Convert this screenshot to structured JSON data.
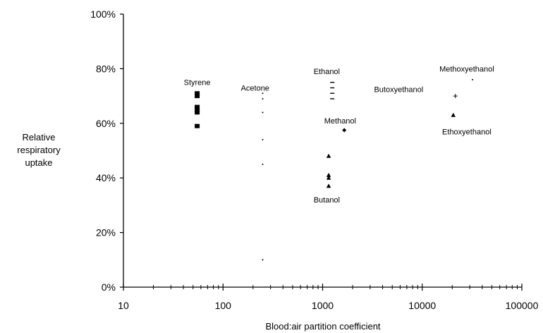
{
  "chart_data": {
    "type": "scatter",
    "title": "",
    "xlabel": "Blood:air partition coefficient",
    "ylabel": [
      "Relative",
      "respiratory",
      "uptake"
    ],
    "xscale": "log",
    "xlim": [
      10,
      100000
    ],
    "ylim": [
      0,
      100
    ],
    "x_tick_labels": [
      "10",
      "100",
      "1000",
      "10000",
      "100000"
    ],
    "x_ticks": [
      10,
      100,
      1000,
      10000,
      100000
    ],
    "y_tick_labels": [
      "0%",
      "20%",
      "40%",
      "60%",
      "80%",
      "100%"
    ],
    "y_ticks": [
      0,
      20,
      40,
      60,
      80,
      100
    ],
    "grid": false,
    "series": [
      {
        "name": "Styrene",
        "marker": "square",
        "points": [
          [
            55,
            71
          ],
          [
            55,
            70
          ],
          [
            55,
            66
          ],
          [
            55,
            65
          ],
          [
            55,
            64
          ],
          [
            55,
            59
          ]
        ]
      },
      {
        "name": "Acetone",
        "marker": "dot",
        "points": [
          [
            250,
            71
          ],
          [
            250,
            69
          ],
          [
            250,
            64
          ],
          [
            250,
            54
          ],
          [
            250,
            45
          ],
          [
            250,
            10
          ]
        ]
      },
      {
        "name": "Ethanol",
        "marker": "dash",
        "points": [
          [
            1250,
            75
          ],
          [
            1250,
            73
          ],
          [
            1250,
            71
          ],
          [
            1250,
            69
          ]
        ]
      },
      {
        "name": "Methanol",
        "marker": "diamond",
        "points": [
          [
            1650,
            57.5
          ]
        ]
      },
      {
        "name": "Butanol",
        "marker": "triangle",
        "points": [
          [
            1150,
            48
          ],
          [
            1150,
            41
          ],
          [
            1150,
            40
          ],
          [
            1150,
            37
          ]
        ]
      },
      {
        "name": "Butoxyethanol",
        "marker": "plus",
        "points": [
          [
            21500,
            70
          ]
        ]
      },
      {
        "name": "Methoxyethanol",
        "marker": "dot",
        "points": [
          [
            32000,
            76
          ]
        ]
      },
      {
        "name": "Ethoxyethanol",
        "marker": "triangle",
        "points": [
          [
            20500,
            63
          ]
        ]
      }
    ],
    "annotations": [
      {
        "text": "Styrene",
        "x": 55,
        "y": 74
      },
      {
        "text": "Acetone",
        "x": 210,
        "y": 72
      },
      {
        "text": "Ethanol",
        "x": 1100,
        "y": 78
      },
      {
        "text": "Methanol",
        "x": 1500,
        "y": 60
      },
      {
        "text": "Butanol",
        "x": 1100,
        "y": 31
      },
      {
        "text": "Butoxyethanol",
        "x": 5800,
        "y": 71.5
      },
      {
        "text": "Methoxyethanol",
        "x": 28000,
        "y": 79
      },
      {
        "text": "Ethoxyethanol",
        "x": 28000,
        "y": 56
      }
    ]
  }
}
